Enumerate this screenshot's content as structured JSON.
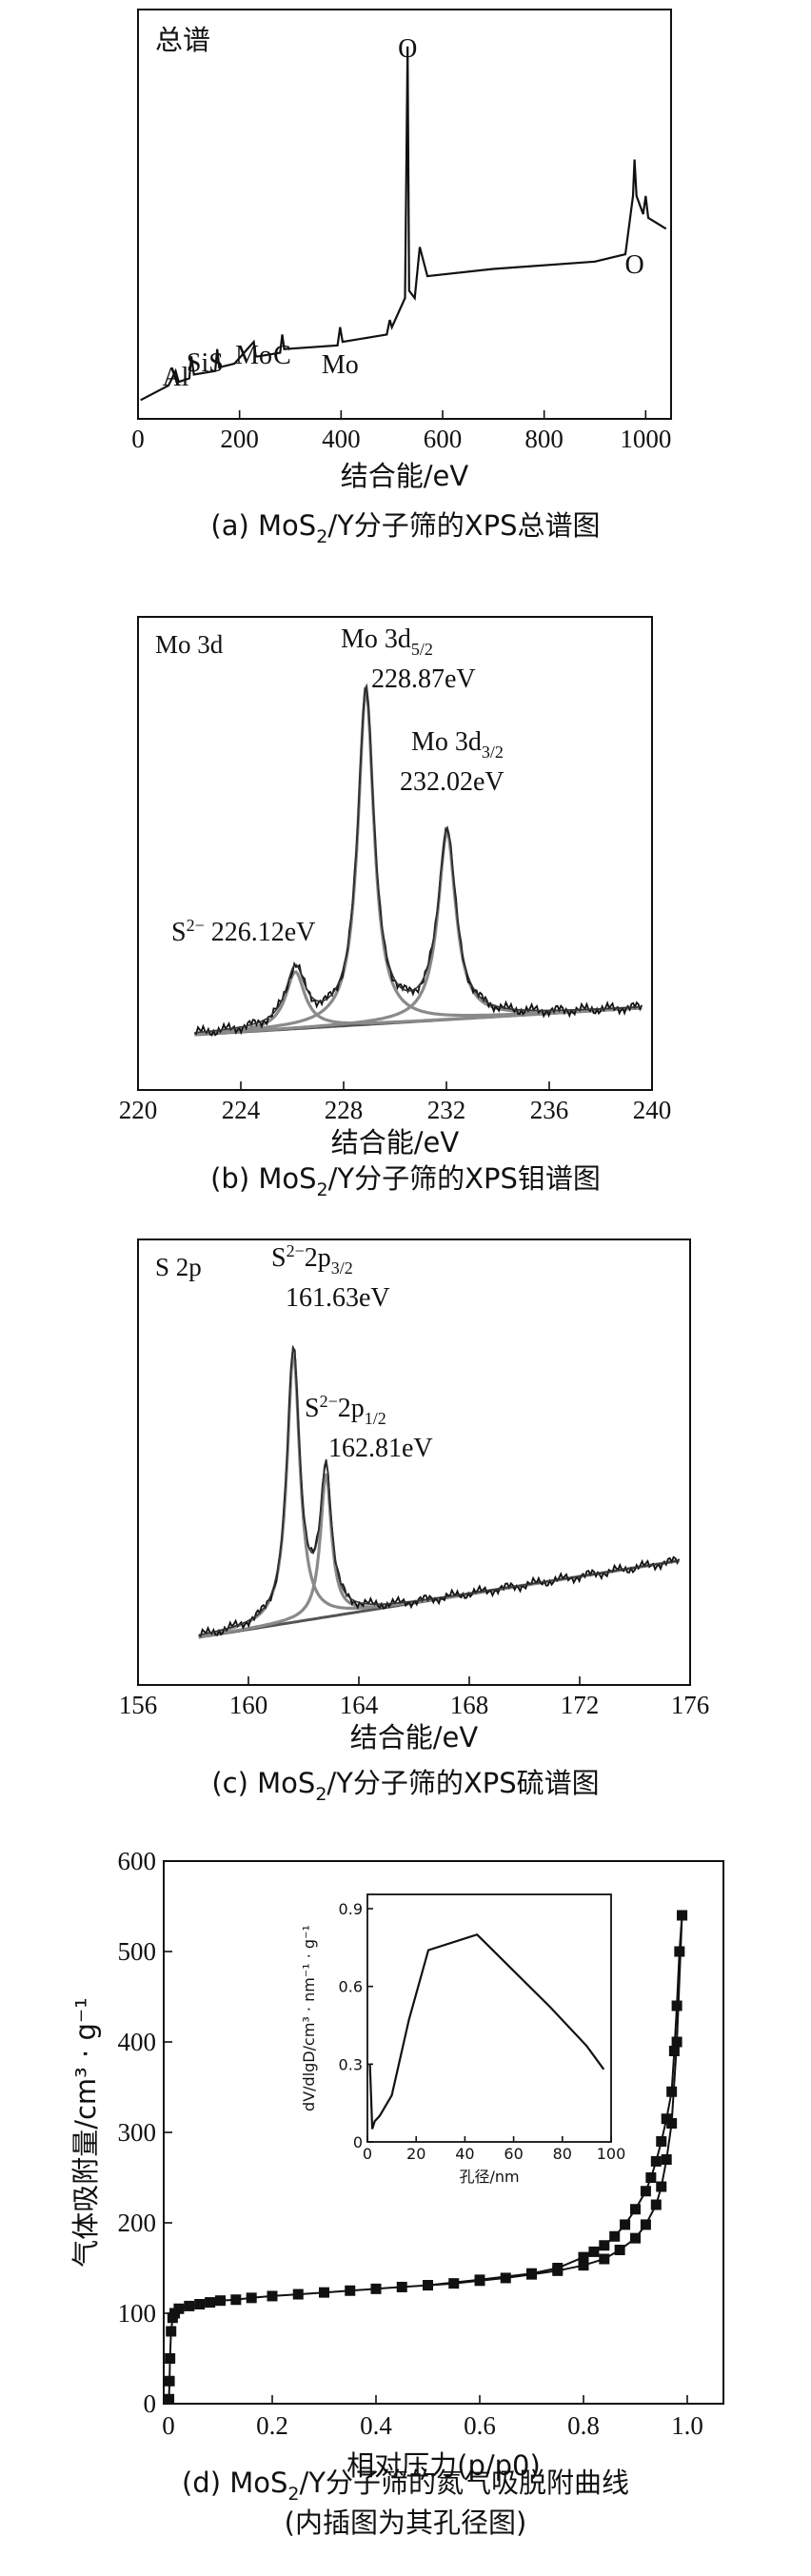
{
  "chart_data": [
    {
      "type": "line",
      "panel_label": "总谱",
      "xlabel": "结合能/eV",
      "caption": {
        "pre": "(a) MoS",
        "sub": "2",
        "post": "/Y分子筛的XPS总谱图"
      },
      "xlim": [
        0,
        1050
      ],
      "xticks": [
        0,
        200,
        400,
        600,
        800,
        1000
      ],
      "annotations": [
        {
          "text": "Al",
          "x": 74
        },
        {
          "text": "SiS",
          "x": 132
        },
        {
          "text": "Mo",
          "x": 228
        },
        {
          "text": "C",
          "x": 284
        },
        {
          "text": "Mo",
          "x": 398
        },
        {
          "text": "O",
          "x": 531
        },
        {
          "text": "O",
          "x": 978
        }
      ],
      "series": [
        {
          "color": "#111111",
          "x": [
            5,
            60,
            74,
            80,
            101,
            105,
            110,
            152,
            156,
            160,
            190,
            228,
            232,
            236,
            280,
            284,
            288,
            393,
            398,
            403,
            490,
            496,
            500,
            526,
            531,
            534,
            545,
            555,
            570,
            700,
            900,
            960,
            975,
            978,
            982,
            995,
            1000,
            1005,
            1040
          ],
          "y": [
            0.02,
            0.06,
            0.1,
            0.07,
            0.08,
            0.14,
            0.09,
            0.1,
            0.16,
            0.11,
            0.12,
            0.18,
            0.14,
            0.14,
            0.15,
            0.2,
            0.16,
            0.17,
            0.22,
            0.18,
            0.2,
            0.24,
            0.22,
            0.3,
            0.99,
            0.32,
            0.3,
            0.44,
            0.36,
            0.38,
            0.4,
            0.42,
            0.58,
            0.68,
            0.58,
            0.53,
            0.58,
            0.52,
            0.49
          ]
        }
      ]
    },
    {
      "type": "line",
      "panel_label": "Mo 3d",
      "xlabel": "结合能/eV",
      "caption": {
        "pre": "(b) MoS",
        "sub": "2",
        "post": "/Y分子筛的XPS钼谱图"
      },
      "xlim": [
        220,
        240
      ],
      "xticks": [
        220,
        224,
        228,
        232,
        236,
        240
      ],
      "annotations": [
        {
          "text": "S",
          "sup": "2−",
          "rest": " 226.12eV",
          "x": 226.12
        },
        {
          "text": "Mo 3d",
          "sub": "5/2",
          "value": "228.87eV",
          "x": 228.87
        },
        {
          "text": "Mo 3d",
          "sub": "3/2",
          "value": "232.02eV",
          "x": 232.02
        }
      ],
      "peaks": [
        {
          "center": 226.12,
          "height": 0.17
        },
        {
          "center": 228.87,
          "height": 1.0
        },
        {
          "center": 232.02,
          "height": 0.56
        }
      ],
      "background": [
        0.0,
        0.08
      ]
    },
    {
      "type": "line",
      "panel_label": "S 2p",
      "xlabel": "结合能/eV",
      "caption": {
        "pre": "(c) MoS",
        "sub": "2",
        "post": "/Y分子筛的XPS硫谱图"
      },
      "xlim": [
        156,
        176
      ],
      "xticks": [
        156,
        160,
        164,
        168,
        172,
        176
      ],
      "annotations": [
        {
          "text": "S",
          "sup": "2−",
          "rest": "2p",
          "sub": "3/2",
          "value": "161.63eV",
          "x": 161.63
        },
        {
          "text": "S",
          "sup": "2−",
          "rest": "2p",
          "sub": "1/2",
          "value": "162.81eV",
          "x": 162.81
        }
      ],
      "peaks": [
        {
          "center": 161.63,
          "height": 0.85
        },
        {
          "center": 162.81,
          "height": 0.45
        }
      ],
      "background": [
        0.03,
        0.27
      ]
    },
    {
      "type": "scatter",
      "xlabel": "相对压力(p/p0)",
      "ylabel": "气体吸附量/cm³ · g⁻¹",
      "caption": {
        "line1pre": "(d) MoS",
        "sub": "2",
        "line1post": "/Y分子筛的氮气吸脱附曲线",
        "line2": "(内插图为其孔径图)"
      },
      "xlim": [
        0,
        1.0
      ],
      "xticks": [
        "0",
        "0.2",
        "0.4",
        "0.6",
        "0.8",
        "1.0"
      ],
      "ylim": [
        0,
        600
      ],
      "yticks": [
        "0",
        "100",
        "200",
        "300",
        "400",
        "500",
        "600"
      ],
      "series": [
        {
          "name": "adsorption",
          "x": [
            0.001,
            0.002,
            0.003,
            0.005,
            0.008,
            0.012,
            0.02,
            0.04,
            0.06,
            0.08,
            0.1,
            0.13,
            0.16,
            0.2,
            0.25,
            0.3,
            0.35,
            0.4,
            0.45,
            0.5,
            0.55,
            0.6,
            0.65,
            0.7,
            0.75,
            0.8,
            0.84,
            0.87,
            0.9,
            0.92,
            0.94,
            0.95,
            0.96,
            0.97,
            0.98,
            0.99
          ],
          "y": [
            5,
            25,
            50,
            80,
            95,
            100,
            105,
            108,
            110,
            112,
            114,
            115,
            117,
            119,
            121,
            123,
            125,
            127,
            129,
            131,
            133,
            136,
            139,
            143,
            147,
            153,
            160,
            170,
            183,
            198,
            220,
            240,
            270,
            310,
            400,
            540
          ]
        },
        {
          "name": "desorption",
          "x": [
            0.99,
            0.985,
            0.98,
            0.975,
            0.97,
            0.96,
            0.95,
            0.94,
            0.93,
            0.92,
            0.9,
            0.88,
            0.86,
            0.84,
            0.82,
            0.8,
            0.75,
            0.7,
            0.6,
            0.5
          ],
          "y": [
            540,
            500,
            440,
            390,
            345,
            315,
            290,
            268,
            250,
            235,
            215,
            198,
            185,
            175,
            168,
            162,
            150,
            144,
            137,
            131
          ]
        }
      ],
      "inset": {
        "xlabel": "孔径/nm",
        "ylabel": "dV/dlgD/cm³ · nm⁻¹ · g⁻¹",
        "xlim": [
          0,
          100
        ],
        "xticks": [
          "0",
          "20",
          "40",
          "60",
          "80",
          "100"
        ],
        "ylim": [
          0,
          0.9
        ],
        "yticks": [
          "0",
          "0.3",
          "0.6",
          "0.9"
        ],
        "x": [
          1,
          2,
          3,
          5,
          10,
          17,
          25,
          45,
          60,
          75,
          90,
          97
        ],
        "y": [
          0.3,
          0.05,
          0.08,
          0.1,
          0.18,
          0.47,
          0.74,
          0.8,
          0.66,
          0.52,
          0.37,
          0.28
        ]
      }
    }
  ]
}
